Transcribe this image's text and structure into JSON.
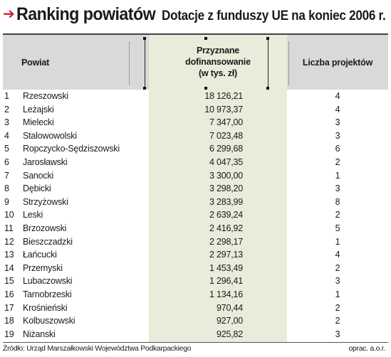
{
  "title": {
    "arrow": "➔",
    "main": "Ranking powiatów",
    "sub": "Dotacje z funduszy UE na koniec 2006 r."
  },
  "headers": {
    "powiat": "Powiat",
    "kwota_line1": "Przyznane",
    "kwota_line2": "dofinansowanie",
    "kwota_line3": "(w tys. zł)",
    "liczba": "Liczba projektów"
  },
  "rows": [
    {
      "num": "1",
      "name": "Rzeszowski",
      "kwota": "18 126,21",
      "liczba": "4"
    },
    {
      "num": "2",
      "name": "Leżajski",
      "kwota": "10 973,37",
      "liczba": "4"
    },
    {
      "num": "3",
      "name": "Mielecki",
      "kwota": "7 347,00",
      "liczba": "3"
    },
    {
      "num": "4",
      "name": "Stalowowolski",
      "kwota": "7 023,48",
      "liczba": "3"
    },
    {
      "num": "5",
      "name": "Ropczycko-Sędziszowski",
      "kwota": "6 299,68",
      "liczba": "6"
    },
    {
      "num": "6",
      "name": "Jarosławski",
      "kwota": "4 047,35",
      "liczba": "2"
    },
    {
      "num": "7",
      "name": "Sanocki",
      "kwota": "3 300,00",
      "liczba": "1"
    },
    {
      "num": "8",
      "name": "Dębicki",
      "kwota": "3 298,20",
      "liczba": "3"
    },
    {
      "num": "9",
      "name": "Strzyżowski",
      "kwota": "3 283,99",
      "liczba": "8"
    },
    {
      "num": "10",
      "name": "Leski",
      "kwota": "2 639,24",
      "liczba": "2"
    },
    {
      "num": "11",
      "name": "Brzozowski",
      "kwota": "2 416,92",
      "liczba": "5"
    },
    {
      "num": "12",
      "name": "Bieszczadzki",
      "kwota": "2 298,17",
      "liczba": "1"
    },
    {
      "num": "13",
      "name": "Łańcucki",
      "kwota": "2 297,13",
      "liczba": "4"
    },
    {
      "num": "14",
      "name": "Przemyski",
      "kwota": "1 453,49",
      "liczba": "2"
    },
    {
      "num": "15",
      "name": "Lubaczowski",
      "kwota": "1 296,41",
      "liczba": "3"
    },
    {
      "num": "16",
      "name": "Tarnobrzeski",
      "kwota": "1 134,16",
      "liczba": "1"
    },
    {
      "num": "17",
      "name": "Krośnieński",
      "kwota": "970,44",
      "liczba": "2"
    },
    {
      "num": "18",
      "name": "Kolbuszowski",
      "kwota": "927,00",
      "liczba": "2"
    },
    {
      "num": "19",
      "name": "Niżanski",
      "kwota": "925,82",
      "liczba": "3"
    }
  ],
  "footer": {
    "source": "Źródło: Urząd Marszałkowski Województwa Podkarpackiego",
    "author": "oprac. a.o.r."
  },
  "colors": {
    "arrow": "#d0202a",
    "header_bg": "#d9d9d9",
    "highlight_column": "#e9ecda"
  }
}
